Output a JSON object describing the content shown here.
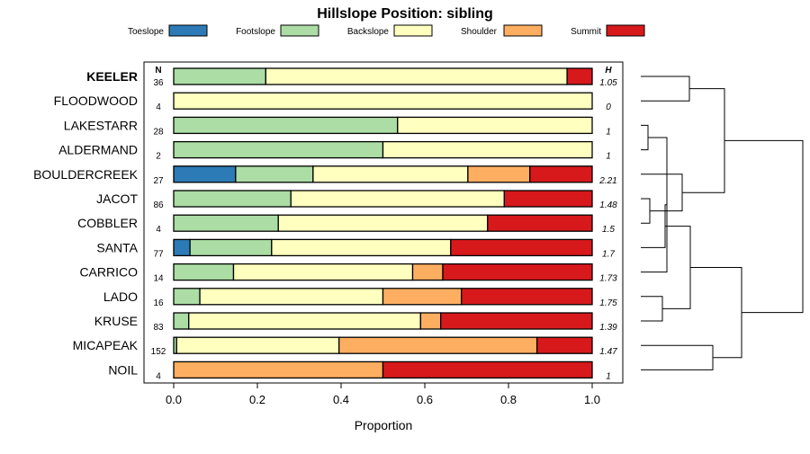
{
  "chart_data": {
    "type": "bar",
    "stacked": true,
    "orientation": "horizontal",
    "title": "Hillslope Position: sibling",
    "xlabel": "Proportion",
    "ylabel": "",
    "xlim": [
      0,
      1
    ],
    "xticks": [
      "0.0",
      "0.2",
      "0.4",
      "0.6",
      "0.8",
      "1.0"
    ],
    "xtick_values": [
      0,
      0.2,
      0.4,
      0.6,
      0.8,
      1.0
    ],
    "n_header": "N",
    "h_header": "H",
    "legend": [
      {
        "name": "Toeslope",
        "color": "#2c7bb6"
      },
      {
        "name": "Footslope",
        "color": "#abdda4"
      },
      {
        "name": "Backslope",
        "color": "#ffffbf"
      },
      {
        "name": "Shoulder",
        "color": "#fdae61"
      },
      {
        "name": "Summit",
        "color": "#d7191c"
      }
    ],
    "rows": [
      {
        "name": "KEELER",
        "bold": true,
        "n": "36",
        "h": "1.05",
        "values": [
          0,
          0.22,
          0.72,
          0,
          0.06
        ]
      },
      {
        "name": "FLOODWOOD",
        "bold": false,
        "n": "4",
        "h": "0",
        "values": [
          0,
          0,
          1.0,
          0,
          0
        ]
      },
      {
        "name": "LAKESTARR",
        "bold": false,
        "n": "28",
        "h": "1",
        "values": [
          0,
          0.535,
          0.465,
          0,
          0
        ]
      },
      {
        "name": "ALDERMAND",
        "bold": false,
        "n": "2",
        "h": "1",
        "values": [
          0,
          0.5,
          0.5,
          0,
          0
        ]
      },
      {
        "name": "BOULDERCREEK",
        "bold": false,
        "n": "27",
        "h": "2.21",
        "values": [
          0.148,
          0.185,
          0.37,
          0.148,
          0.149
        ]
      },
      {
        "name": "JACOT",
        "bold": false,
        "n": "86",
        "h": "1.48",
        "values": [
          0,
          0.28,
          0.51,
          0,
          0.21
        ]
      },
      {
        "name": "COBBLER",
        "bold": false,
        "n": "4",
        "h": "1.5",
        "values": [
          0,
          0.25,
          0.5,
          0,
          0.25
        ]
      },
      {
        "name": "SANTA",
        "bold": false,
        "n": "77",
        "h": "1.7",
        "values": [
          0.039,
          0.195,
          0.428,
          0,
          0.338
        ]
      },
      {
        "name": "CARRICO",
        "bold": false,
        "n": "14",
        "h": "1.73",
        "values": [
          0,
          0.143,
          0.428,
          0.072,
          0.357
        ]
      },
      {
        "name": "LADO",
        "bold": false,
        "n": "16",
        "h": "1.75",
        "values": [
          0,
          0.0625,
          0.4375,
          0.1875,
          0.3125
        ]
      },
      {
        "name": "KRUSE",
        "bold": false,
        "n": "83",
        "h": "1.39",
        "values": [
          0,
          0.036,
          0.554,
          0.048,
          0.362
        ]
      },
      {
        "name": "MICAPEAK",
        "bold": false,
        "n": "152",
        "h": "1.47",
        "values": [
          0,
          0.007,
          0.388,
          0.473,
          0.132
        ]
      },
      {
        "name": "NOIL",
        "bold": false,
        "n": "4",
        "h": "1",
        "values": [
          0,
          0,
          0,
          0.5,
          0.5
        ]
      }
    ]
  }
}
